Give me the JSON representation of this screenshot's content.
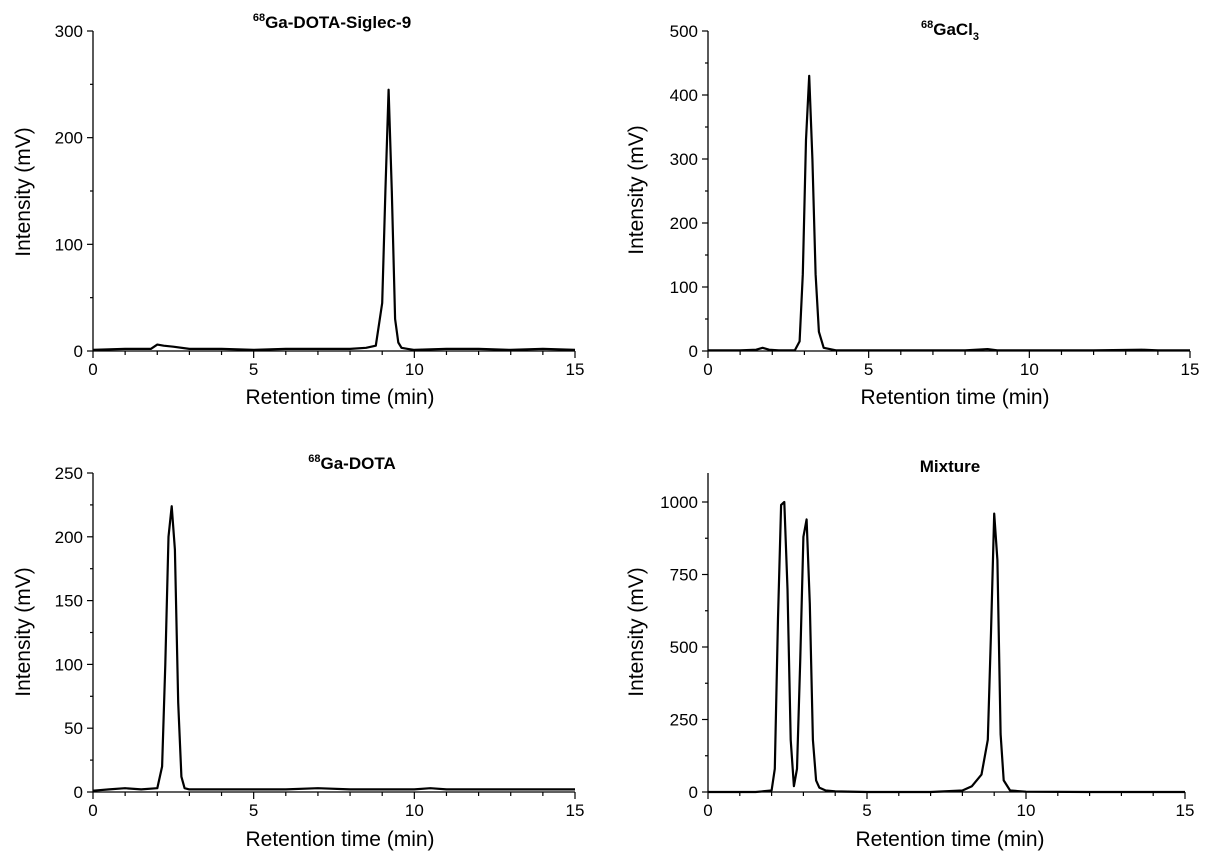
{
  "chart_data": [
    {
      "type": "line",
      "title": "Ga-DOTA-Siglec-9",
      "title_superscript": "68",
      "title_subscript": "",
      "xlabel": "Retention time (min)",
      "ylabel": "Intensity (mV)",
      "xlim": [
        0,
        15
      ],
      "ylim": [
        0,
        300
      ],
      "xticks": [
        0,
        5,
        10,
        15
      ],
      "yticks": [
        0,
        100,
        200,
        300
      ],
      "grid": false,
      "series": [
        {
          "x": [
            0,
            1,
            1.8,
            2.0,
            2.2,
            2.5,
            3.0,
            3.5,
            4.0,
            5.0,
            6.0,
            7.0,
            8.0,
            8.5,
            8.8,
            9.0,
            9.1,
            9.2,
            9.3,
            9.4,
            9.5,
            9.6,
            9.8,
            10.0,
            11.0,
            12.0,
            13.0,
            14.0,
            15.0
          ],
          "y": [
            1,
            2,
            2,
            6,
            5,
            4,
            2,
            2,
            2,
            1,
            2,
            2,
            2,
            3,
            5,
            45,
            150,
            245,
            150,
            30,
            8,
            3,
            2,
            1,
            2,
            2,
            1,
            2,
            1
          ]
        }
      ]
    },
    {
      "type": "line",
      "title": "GaCl",
      "title_superscript": "68",
      "title_subscript": "3",
      "xlabel": "Retention time (min)",
      "ylabel": "Intensity (mV)",
      "xlim": [
        0,
        15
      ],
      "ylim": [
        0,
        500
      ],
      "xticks": [
        0,
        5,
        10,
        15
      ],
      "yticks": [
        0,
        100,
        200,
        300,
        400,
        500
      ],
      "grid": false,
      "series": [
        {
          "x": [
            0,
            1.0,
            1.5,
            1.7,
            1.9,
            2.2,
            2.7,
            2.85,
            2.95,
            3.05,
            3.15,
            3.25,
            3.35,
            3.45,
            3.6,
            4.0,
            5.0,
            6.0,
            7.0,
            8.0,
            8.7,
            9.0,
            10.0,
            11.0,
            12.0,
            13.5,
            14.0,
            15.0
          ],
          "y": [
            1,
            1,
            2,
            5,
            2,
            1,
            1,
            15,
            120,
            330,
            430,
            300,
            120,
            30,
            5,
            1,
            1,
            1,
            1,
            1,
            3,
            1,
            1,
            1,
            1,
            2,
            1,
            1
          ]
        }
      ]
    },
    {
      "type": "line",
      "title": "Ga-DOTA",
      "title_superscript": "68",
      "title_subscript": "",
      "xlabel": "Retention time (min)",
      "ylabel": "Intensity (mV)",
      "xlim": [
        0,
        15
      ],
      "ylim": [
        0,
        250
      ],
      "xticks": [
        0,
        5,
        10,
        15
      ],
      "yticks": [
        0,
        50,
        100,
        150,
        200,
        250
      ],
      "grid": false,
      "series": [
        {
          "x": [
            0,
            0.5,
            1.0,
            1.5,
            2.0,
            2.15,
            2.25,
            2.35,
            2.45,
            2.55,
            2.65,
            2.75,
            2.85,
            3.0,
            3.5,
            4.0,
            5.0,
            6.0,
            7.0,
            8.0,
            9.0,
            10.0,
            10.5,
            11.0,
            12.0,
            13.0,
            14.0,
            15.0
          ],
          "y": [
            1,
            2,
            3,
            2,
            3,
            20,
            100,
            200,
            224,
            190,
            70,
            12,
            3,
            2,
            2,
            2,
            2,
            2,
            3,
            2,
            2,
            2,
            3,
            2,
            2,
            2,
            2,
            2
          ]
        }
      ]
    },
    {
      "type": "line",
      "title": "Mixture",
      "title_superscript": "",
      "title_subscript": "",
      "xlabel": "Retention time (min)",
      "ylabel": "Intensity (mV)",
      "xlim": [
        0,
        15
      ],
      "ylim": [
        0,
        1100
      ],
      "xticks": [
        0,
        5,
        10,
        15
      ],
      "yticks": [
        0,
        250,
        500,
        750,
        1000
      ],
      "grid": false,
      "series": [
        {
          "x": [
            0,
            1.5,
            2.0,
            2.1,
            2.2,
            2.3,
            2.4,
            2.5,
            2.6,
            2.7,
            2.8,
            2.9,
            3.0,
            3.1,
            3.2,
            3.3,
            3.4,
            3.5,
            3.7,
            4.0,
            5.0,
            6.0,
            7.0,
            8.0,
            8.3,
            8.6,
            8.8,
            8.9,
            9.0,
            9.1,
            9.2,
            9.3,
            9.5,
            10.0,
            12.0,
            15.0
          ],
          "y": [
            0,
            0,
            5,
            80,
            600,
            990,
            1000,
            700,
            180,
            20,
            80,
            450,
            880,
            940,
            650,
            180,
            40,
            15,
            5,
            2,
            0,
            0,
            0,
            5,
            20,
            60,
            180,
            550,
            960,
            800,
            200,
            40,
            5,
            1,
            0,
            0
          ]
        }
      ]
    }
  ]
}
